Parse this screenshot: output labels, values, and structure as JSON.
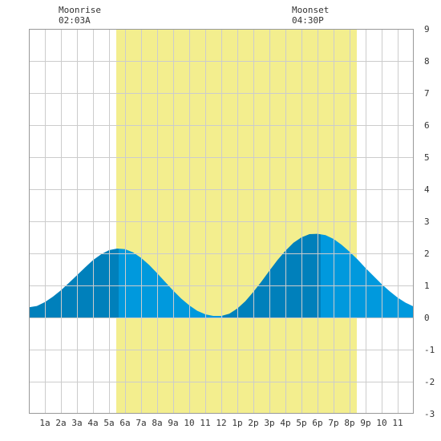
{
  "annotations": {
    "moonrise_label": "Moonrise",
    "moonrise_time": "02:03A",
    "moonset_label": "Moonset",
    "moonset_time": "04:30P"
  },
  "colors": {
    "daylight": "#f3ee8e",
    "tide_light": "#0099dd",
    "tide_dark": "#0080bb",
    "grid": "#cccccc",
    "frame": "#999999"
  },
  "chart_data": {
    "type": "area",
    "title": "",
    "xlabel": "",
    "ylabel": "",
    "xlim": [
      0,
      24
    ],
    "ylim": [
      -3,
      9
    ],
    "y_ticks": [
      -3,
      -2,
      -1,
      0,
      1,
      2,
      3,
      4,
      5,
      6,
      7,
      8,
      9
    ],
    "x_tick_labels": [
      {
        "hour": 1,
        "label": "1a"
      },
      {
        "hour": 2,
        "label": "2a"
      },
      {
        "hour": 3,
        "label": "3a"
      },
      {
        "hour": 4,
        "label": "4a"
      },
      {
        "hour": 5,
        "label": "5a"
      },
      {
        "hour": 6,
        "label": "6a"
      },
      {
        "hour": 7,
        "label": "7a"
      },
      {
        "hour": 8,
        "label": "8a"
      },
      {
        "hour": 9,
        "label": "9a"
      },
      {
        "hour": 10,
        "label": "10"
      },
      {
        "hour": 11,
        "label": "11"
      },
      {
        "hour": 12,
        "label": "12"
      },
      {
        "hour": 13,
        "label": "1p"
      },
      {
        "hour": 14,
        "label": "2p"
      },
      {
        "hour": 15,
        "label": "3p"
      },
      {
        "hour": 16,
        "label": "4p"
      },
      {
        "hour": 17,
        "label": "5p"
      },
      {
        "hour": 18,
        "label": "6p"
      },
      {
        "hour": 19,
        "label": "7p"
      },
      {
        "hour": 20,
        "label": "8p"
      },
      {
        "hour": 21,
        "label": "9p"
      },
      {
        "hour": 22,
        "label": "10"
      },
      {
        "hour": 23,
        "label": "11"
      }
    ],
    "daylight": {
      "start": 5.45,
      "end": 20.45
    },
    "extremes": [
      {
        "type": "high",
        "hour": 5.6,
        "value": 2.15
      },
      {
        "type": "low",
        "hour": 12.1,
        "value": 0.05
      },
      {
        "type": "high",
        "hour": 18.2,
        "value": 2.6
      }
    ],
    "series": [
      {
        "x": [
          0,
          0.5,
          1,
          1.5,
          2,
          2.5,
          3,
          3.5,
          4,
          4.5,
          5,
          5.5,
          6,
          6.5,
          7,
          7.5,
          8,
          8.5,
          9,
          9.5,
          10,
          10.5,
          11,
          11.5,
          12,
          12.5,
          13,
          13.5,
          14,
          14.5,
          15,
          15.5,
          16,
          16.5,
          17,
          17.5,
          18,
          18.5,
          19,
          19.5,
          20,
          20.5,
          21,
          21.5,
          22,
          22.5,
          23,
          23.5,
          24
        ],
        "values": [
          0.32,
          0.36,
          0.48,
          0.65,
          0.85,
          1.08,
          1.32,
          1.56,
          1.79,
          1.97,
          2.1,
          2.15,
          2.13,
          2.03,
          1.86,
          1.64,
          1.38,
          1.11,
          0.84,
          0.59,
          0.38,
          0.21,
          0.1,
          0.05,
          0.05,
          0.12,
          0.28,
          0.51,
          0.8,
          1.12,
          1.46,
          1.79,
          2.08,
          2.33,
          2.5,
          2.6,
          2.61,
          2.57,
          2.45,
          2.27,
          2.05,
          1.81,
          1.54,
          1.29,
          1.04,
          0.82,
          0.62,
          0.46,
          0.34
        ]
      }
    ]
  }
}
